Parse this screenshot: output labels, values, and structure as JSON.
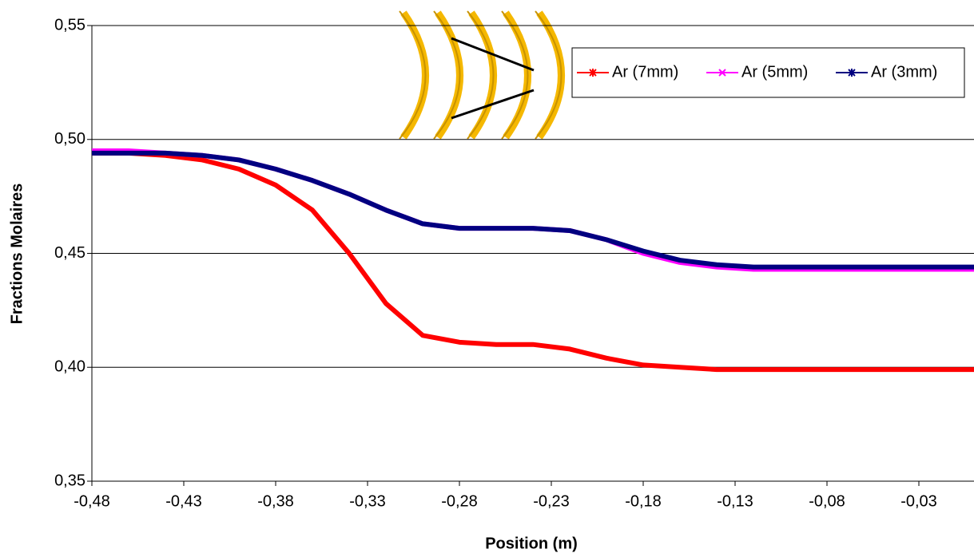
{
  "chart_data": {
    "type": "line",
    "x": [
      -0.48,
      -0.46,
      -0.44,
      -0.42,
      -0.4,
      -0.38,
      -0.36,
      -0.34,
      -0.32,
      -0.3,
      -0.28,
      -0.26,
      -0.24,
      -0.22,
      -0.2,
      -0.18,
      -0.16,
      -0.14,
      -0.12,
      -0.1,
      -0.08,
      -0.06,
      -0.04,
      -0.02,
      0.0
    ],
    "series": [
      {
        "name": "Ar (7mm)",
        "color": "#ff0000",
        "marker": "*",
        "values": [
          0.494,
          0.494,
          0.493,
          0.491,
          0.487,
          0.48,
          0.469,
          0.45,
          0.428,
          0.414,
          0.411,
          0.41,
          0.41,
          0.408,
          0.404,
          0.401,
          0.4,
          0.399,
          0.399,
          0.399,
          0.399,
          0.399,
          0.399,
          0.399,
          0.399
        ]
      },
      {
        "name": "Ar (5mm)",
        "color": "#ff00ff",
        "marker": "x",
        "values": [
          0.495,
          0.495,
          0.494,
          0.493,
          0.491,
          0.487,
          0.482,
          0.476,
          0.469,
          0.463,
          0.461,
          0.461,
          0.461,
          0.46,
          0.456,
          0.45,
          0.446,
          0.444,
          0.443,
          0.443,
          0.443,
          0.443,
          0.443,
          0.443,
          0.443
        ]
      },
      {
        "name": "Ar (3mm)",
        "color": "#000080",
        "marker": "*",
        "values": [
          0.494,
          0.494,
          0.494,
          0.493,
          0.491,
          0.487,
          0.482,
          0.476,
          0.469,
          0.463,
          0.461,
          0.461,
          0.461,
          0.46,
          0.456,
          0.451,
          0.447,
          0.445,
          0.444,
          0.444,
          0.444,
          0.444,
          0.444,
          0.444,
          0.444
        ]
      }
    ],
    "xlabel": "Position (m)",
    "ylabel": "Fractions Molaires",
    "xlim": [
      -0.48,
      0.0
    ],
    "ylim": [
      0.35,
      0.55
    ],
    "xticks": [
      {
        "value": -0.48,
        "label": "-0,48"
      },
      {
        "value": -0.43,
        "label": "-0,43"
      },
      {
        "value": -0.38,
        "label": "-0,38"
      },
      {
        "value": -0.33,
        "label": "-0,33"
      },
      {
        "value": -0.28,
        "label": "-0,28"
      },
      {
        "value": -0.23,
        "label": "-0,23"
      },
      {
        "value": -0.18,
        "label": "-0,18"
      },
      {
        "value": -0.13,
        "label": "-0,13"
      },
      {
        "value": -0.08,
        "label": "-0,08"
      },
      {
        "value": -0.03,
        "label": "-0,03"
      }
    ],
    "yticks": [
      {
        "value": 0.35,
        "label": "0,35"
      },
      {
        "value": 0.4,
        "label": "0,40"
      },
      {
        "value": 0.45,
        "label": "0,45"
      },
      {
        "value": 0.5,
        "label": "0,50"
      },
      {
        "value": 0.55,
        "label": "0,55"
      }
    ],
    "grid": true,
    "legend": "upper right"
  }
}
